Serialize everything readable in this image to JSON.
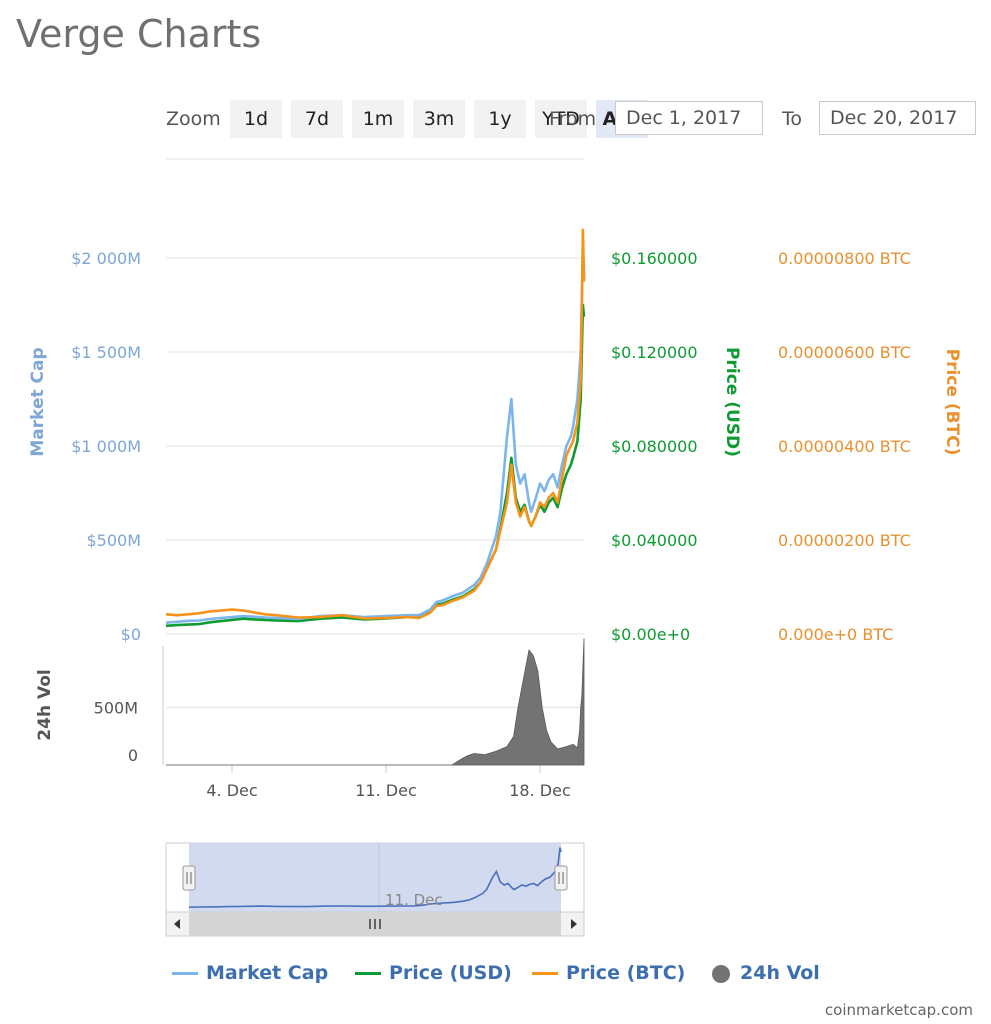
{
  "title": "Verge Charts",
  "zoom": {
    "label": "Zoom",
    "buttons": [
      "1d",
      "7d",
      "1m",
      "3m",
      "1y",
      "YTD",
      "ALL"
    ],
    "active": "ALL"
  },
  "range": {
    "from_label": "From",
    "from_value": "Dec 1, 2017",
    "to_label": "To",
    "to_value": "Dec 20, 2017"
  },
  "colors": {
    "market_cap": "#7cb5ec",
    "price_usd": "#0e9b32",
    "price_btc": "#f7931a",
    "volume": "#737373",
    "left_axis": "#7ea6d6",
    "usd_axis": "#0e9b32",
    "btc_axis": "#e8912e",
    "navigator_fill": "#cdd6ee",
    "navigator_line": "#4a6fbd"
  },
  "chart_data": {
    "type": "line",
    "x_unit": "day of December 2017",
    "x_range": [
      1,
      20
    ],
    "x_ticks": [
      {
        "x": 4,
        "label": "4. Dec"
      },
      {
        "x": 11,
        "label": "11. Dec"
      },
      {
        "x": 18,
        "label": "18. Dec"
      }
    ],
    "market_cap_axis": {
      "title": "Market Cap",
      "range": [
        0,
        2000
      ],
      "unit": "M USD",
      "ticks": [
        {
          "v": 0,
          "label": "$0"
        },
        {
          "v": 500,
          "label": "$500M"
        },
        {
          "v": 1000,
          "label": "$1 000M"
        },
        {
          "v": 1500,
          "label": "$1 500M"
        },
        {
          "v": 2000,
          "label": "$2 000M"
        }
      ]
    },
    "price_usd_axis": {
      "title": "Price (USD)",
      "range": [
        0,
        0.16
      ],
      "ticks": [
        {
          "v": 0,
          "label": "$0.00e+0"
        },
        {
          "v": 0.04,
          "label": "$0.040000"
        },
        {
          "v": 0.08,
          "label": "$0.080000"
        },
        {
          "v": 0.12,
          "label": "$0.120000"
        },
        {
          "v": 0.16,
          "label": "$0.160000"
        }
      ]
    },
    "price_btc_axis": {
      "title": "Price (BTC)",
      "range": [
        0,
        8e-06
      ],
      "ticks": [
        {
          "v": 0,
          "label": "0.000e+0 BTC"
        },
        {
          "v": 2e-06,
          "label": "0.00000200 BTC"
        },
        {
          "v": 4e-06,
          "label": "0.00000400 BTC"
        },
        {
          "v": 6e-06,
          "label": "0.00000600 BTC"
        },
        {
          "v": 8e-06,
          "label": "0.00000800 BTC"
        }
      ]
    },
    "volume_axis": {
      "title": "24h Vol",
      "range": [
        0,
        1000
      ],
      "unit": "M USD",
      "ticks": [
        {
          "v": 0,
          "label": "0"
        },
        {
          "v": 500,
          "label": "500M"
        }
      ]
    },
    "series": [
      {
        "name": "Market Cap",
        "axis": "market_cap",
        "x": [
          1,
          1.5,
          2,
          2.5,
          3,
          3.5,
          4,
          4.5,
          5,
          5.5,
          6,
          7,
          8,
          9,
          10,
          11,
          12,
          12.5,
          13,
          13.3,
          13.6,
          14,
          14.5,
          15,
          15.3,
          15.6,
          16,
          16.2,
          16.5,
          16.7,
          16.9,
          17.1,
          17.3,
          17.5,
          17.6,
          17.8,
          18,
          18.2,
          18.4,
          18.6,
          18.8,
          19,
          19.2,
          19.4,
          19.5,
          19.7,
          19.85,
          19.95,
          20
        ],
        "values": [
          60,
          65,
          70,
          72,
          80,
          85,
          90,
          95,
          92,
          88,
          85,
          80,
          95,
          100,
          90,
          95,
          100,
          100,
          130,
          170,
          180,
          200,
          220,
          260,
          300,
          380,
          520,
          650,
          1050,
          1250,
          900,
          800,
          850,
          700,
          650,
          720,
          800,
          760,
          820,
          850,
          780,
          900,
          1000,
          1050,
          1100,
          1250,
          1500,
          2050,
          1900
        ]
      },
      {
        "name": "Price (USD)",
        "axis": "price_usd",
        "x": [
          1,
          1.5,
          2,
          2.5,
          3,
          3.5,
          4,
          4.5,
          5,
          5.5,
          6,
          7,
          8,
          9,
          10,
          11,
          12,
          12.5,
          13,
          13.3,
          13.6,
          14,
          14.5,
          15,
          15.3,
          15.6,
          16,
          16.2,
          16.5,
          16.7,
          16.9,
          17.1,
          17.3,
          17.5,
          17.6,
          17.8,
          18,
          18.2,
          18.4,
          18.6,
          18.8,
          19,
          19.2,
          19.4,
          19.5,
          19.7,
          19.85,
          19.95,
          20
        ],
        "values": [
          0.0035,
          0.0038,
          0.004,
          0.0042,
          0.005,
          0.0055,
          0.006,
          0.0065,
          0.0062,
          0.006,
          0.0058,
          0.0055,
          0.0065,
          0.007,
          0.0062,
          0.0066,
          0.0072,
          0.0072,
          0.0095,
          0.0125,
          0.013,
          0.0145,
          0.016,
          0.019,
          0.022,
          0.028,
          0.036,
          0.045,
          0.06,
          0.075,
          0.058,
          0.052,
          0.055,
          0.048,
          0.046,
          0.05,
          0.055,
          0.052,
          0.056,
          0.058,
          0.054,
          0.062,
          0.068,
          0.072,
          0.075,
          0.082,
          0.1,
          0.14,
          0.135
        ]
      },
      {
        "name": "Price (BTC)",
        "axis": "price_btc",
        "x": [
          1,
          1.5,
          2,
          2.5,
          3,
          3.5,
          4,
          4.5,
          5,
          5.5,
          6,
          7,
          8,
          9,
          10,
          11,
          12,
          12.5,
          13,
          13.3,
          13.6,
          14,
          14.5,
          15,
          15.3,
          15.6,
          16,
          16.2,
          16.5,
          16.7,
          16.9,
          17.1,
          17.3,
          17.5,
          17.6,
          17.8,
          18,
          18.2,
          18.4,
          18.6,
          18.8,
          19,
          19.2,
          19.4,
          19.5,
          19.7,
          19.85,
          19.95,
          20
        ],
        "values": [
          4.2e-07,
          4e-07,
          4.2e-07,
          4.4e-07,
          4.8e-07,
          5e-07,
          5.2e-07,
          5e-07,
          4.6e-07,
          4.2e-07,
          4e-07,
          3.5e-07,
          3.6e-07,
          4e-07,
          3.3e-07,
          3.4e-07,
          3.6e-07,
          3.4e-07,
          4.5e-07,
          6e-07,
          6.2e-07,
          7e-07,
          7.8e-07,
          9.2e-07,
          1.1e-06,
          1.4e-06,
          1.8e-06,
          2.2e-06,
          2.8e-06,
          3.6e-06,
          2.8e-06,
          2.5e-06,
          2.7e-06,
          2.4e-06,
          2.3e-06,
          2.5e-06,
          2.8e-06,
          2.7e-06,
          2.9e-06,
          3e-06,
          2.8e-06,
          3.3e-06,
          3.8e-06,
          4e-06,
          4.1e-06,
          4.5e-06,
          5.4e-06,
          8.6e-06,
          7.5e-06
        ]
      },
      {
        "name": "24h Vol",
        "axis": "volume",
        "type": "area",
        "x": [
          1,
          14,
          14.4,
          14.7,
          15,
          15.5,
          16,
          16.5,
          16.8,
          17,
          17.3,
          17.5,
          17.7,
          17.9,
          18.1,
          18.3,
          18.5,
          18.8,
          19.2,
          19.5,
          19.7,
          19.8,
          19.85,
          19.9,
          19.95,
          20
        ],
        "values": [
          0,
          0,
          50,
          80,
          100,
          90,
          120,
          160,
          250,
          500,
          800,
          1000,
          950,
          820,
          500,
          300,
          200,
          140,
          160,
          180,
          150,
          300,
          500,
          600,
          850,
          1100
        ]
      }
    ],
    "legend": [
      "Market Cap",
      "Price (USD)",
      "Price (BTC)",
      "24h Vol"
    ],
    "legend_position": "bottom",
    "navigator": {
      "tick_label": "11. Dec"
    }
  },
  "credits": "coinmarketcap.com"
}
